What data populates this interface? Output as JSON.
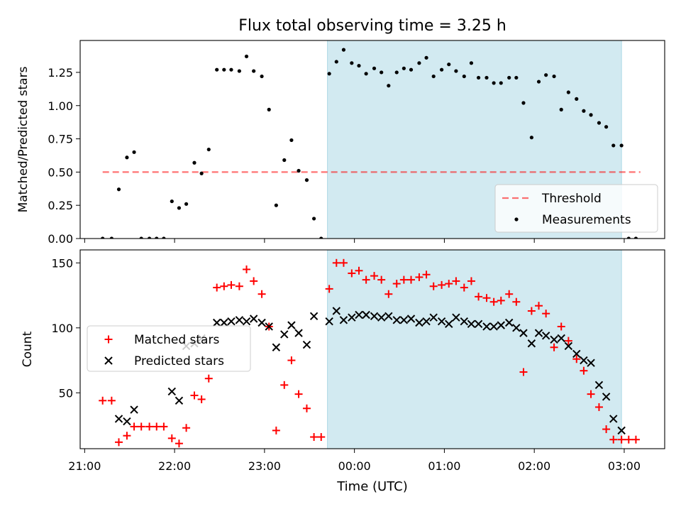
{
  "title": "Flux total observing time = 3.25 h",
  "xlabel": "Time (UTC)",
  "colors": {
    "shade": "#add8e6",
    "threshold": "#ff0000",
    "matched": "#ff0000",
    "predicted": "#000000",
    "measurement": "#000000"
  },
  "chart_data": [
    {
      "type": "scatter",
      "ylabel": "Matched/Predicted stars",
      "ylim": [
        0,
        1.49
      ],
      "yticks": [
        0.0,
        0.25,
        0.5,
        0.75,
        1.0,
        1.25
      ],
      "ytick_labels": [
        "0.00",
        "0.25",
        "0.50",
        "0.75",
        "1.00",
        "1.25"
      ],
      "xlim_hours": [
        20.95,
        27.45
      ],
      "shaded_region_hours": [
        23.7,
        26.97
      ],
      "legend": {
        "position": "lower right",
        "entries": [
          "Threshold",
          "Measurements"
        ]
      },
      "threshold": {
        "name": "Threshold",
        "value": 0.5,
        "x_hours": [
          21.2,
          27.18
        ]
      },
      "series": [
        {
          "name": "Measurements",
          "x_hours": [
            21.2,
            21.3,
            21.38,
            21.47,
            21.55,
            21.63,
            21.72,
            21.8,
            21.88,
            21.97,
            22.05,
            22.13,
            22.22,
            22.3,
            22.38,
            22.47,
            22.55,
            22.63,
            22.72,
            22.8,
            22.88,
            22.97,
            23.05,
            23.13,
            23.22,
            23.3,
            23.38,
            23.47,
            23.55,
            23.63,
            23.72,
            23.8,
            23.88,
            23.97,
            24.05,
            24.13,
            24.22,
            24.3,
            24.38,
            24.47,
            24.55,
            24.63,
            24.72,
            24.8,
            24.88,
            24.97,
            25.05,
            25.13,
            25.22,
            25.3,
            25.38,
            25.47,
            25.55,
            25.63,
            25.72,
            25.8,
            25.88,
            25.97,
            26.05,
            26.13,
            26.22,
            26.3,
            26.38,
            26.47,
            26.55,
            26.63,
            26.72,
            26.8,
            26.88,
            26.97,
            27.05,
            27.13
          ],
          "y": [
            0.0,
            0.0,
            0.37,
            0.61,
            0.65,
            0.0,
            0.0,
            0.0,
            0.0,
            0.28,
            0.23,
            0.26,
            0.57,
            0.49,
            0.67,
            1.27,
            1.27,
            1.27,
            1.26,
            1.37,
            1.26,
            1.22,
            0.97,
            0.25,
            0.59,
            0.74,
            0.51,
            0.44,
            0.15,
            0.0,
            1.24,
            1.33,
            1.42,
            1.32,
            1.3,
            1.24,
            1.28,
            1.25,
            1.15,
            1.25,
            1.28,
            1.27,
            1.32,
            1.36,
            1.22,
            1.27,
            1.31,
            1.26,
            1.22,
            1.32,
            1.21,
            1.21,
            1.17,
            1.17,
            1.21,
            1.21,
            1.02,
            0.76,
            1.18,
            1.23,
            1.22,
            0.97,
            1.1,
            1.05,
            0.96,
            0.93,
            0.87,
            0.84,
            0.7,
            0.7,
            0.0,
            0.0
          ]
        }
      ]
    },
    {
      "type": "scatter",
      "ylabel": "Count",
      "ylim": [
        7,
        160
      ],
      "yticks": [
        50,
        100,
        150
      ],
      "ytick_labels": [
        "50",
        "100",
        "150"
      ],
      "xlim_hours": [
        20.95,
        27.45
      ],
      "xticks_hours": [
        21,
        22,
        23,
        24,
        25,
        26,
        27
      ],
      "xtick_labels": [
        "21:00",
        "22:00",
        "23:00",
        "00:00",
        "01:00",
        "02:00",
        "03:00"
      ],
      "shaded_region_hours": [
        23.7,
        26.97
      ],
      "legend": {
        "position": "center left",
        "entries": [
          "Matched stars",
          "Predicted stars"
        ]
      },
      "series": [
        {
          "name": "Matched stars",
          "marker": "+",
          "x_hours": [
            21.2,
            21.3,
            21.38,
            21.47,
            21.55,
            21.63,
            21.72,
            21.8,
            21.88,
            21.97,
            22.05,
            22.13,
            22.22,
            22.3,
            22.38,
            22.47,
            22.55,
            22.63,
            22.72,
            22.8,
            22.88,
            22.97,
            23.05,
            23.13,
            23.22,
            23.3,
            23.38,
            23.47,
            23.55,
            23.63,
            23.72,
            23.8,
            23.88,
            23.97,
            24.05,
            24.13,
            24.22,
            24.3,
            24.38,
            24.47,
            24.55,
            24.63,
            24.72,
            24.8,
            24.88,
            24.97,
            25.05,
            25.13,
            25.22,
            25.3,
            25.38,
            25.47,
            25.55,
            25.63,
            25.72,
            25.8,
            25.88,
            25.97,
            26.05,
            26.13,
            26.22,
            26.3,
            26.38,
            26.47,
            26.55,
            26.63,
            26.72,
            26.8,
            26.88,
            26.97,
            27.05,
            27.13
          ],
          "y": [
            44,
            44,
            12,
            17,
            24,
            24,
            24,
            24,
            24,
            15,
            11,
            23,
            48,
            45,
            61,
            131,
            132,
            133,
            132,
            145,
            136,
            126,
            101,
            21,
            56,
            75,
            49,
            38,
            16,
            16,
            130,
            150,
            150,
            142,
            144,
            137,
            140,
            137,
            126,
            134,
            137,
            137,
            139,
            141,
            132,
            133,
            134,
            136,
            131,
            136,
            124,
            123,
            120,
            121,
            126,
            120,
            66,
            113,
            117,
            111,
            85,
            101,
            90,
            76,
            67,
            49,
            39,
            22,
            14,
            14,
            14,
            14
          ]
        },
        {
          "name": "Predicted stars",
          "marker": "x",
          "x_hours": [
            21.38,
            21.47,
            21.55,
            21.97,
            22.05,
            22.13,
            22.22,
            22.3,
            22.47,
            22.55,
            22.63,
            22.72,
            22.8,
            22.88,
            22.97,
            23.05,
            23.13,
            23.22,
            23.3,
            23.38,
            23.47,
            23.55,
            23.72,
            23.8,
            23.88,
            23.97,
            24.05,
            24.13,
            24.22,
            24.3,
            24.38,
            24.47,
            24.55,
            24.63,
            24.72,
            24.8,
            24.88,
            24.97,
            25.05,
            25.13,
            25.22,
            25.3,
            25.38,
            25.47,
            25.55,
            25.63,
            25.72,
            25.8,
            25.88,
            25.97,
            26.05,
            26.13,
            26.22,
            26.3,
            26.38,
            26.47,
            26.55,
            26.63,
            26.72,
            26.8,
            26.88,
            26.97
          ],
          "y": [
            30,
            28,
            37,
            51,
            44,
            86,
            88,
            92,
            104,
            104,
            105,
            106,
            105,
            107,
            104,
            101,
            85,
            95,
            102,
            96,
            87,
            109,
            105,
            113,
            106,
            108,
            110,
            110,
            109,
            108,
            109,
            106,
            106,
            107,
            104,
            105,
            108,
            105,
            103,
            108,
            105,
            103,
            103,
            101,
            101,
            102,
            104,
            100,
            96,
            88,
            96,
            94,
            91,
            92,
            86,
            80,
            75,
            73,
            56,
            47,
            30,
            21
          ]
        }
      ]
    }
  ]
}
